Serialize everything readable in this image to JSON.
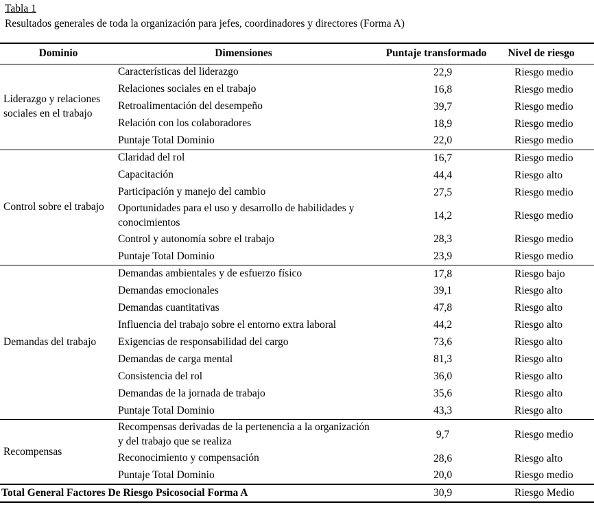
{
  "title": "Tabla 1",
  "subtitle": "Resultados generales de toda la organización para jefes, coordinadores y directores (Forma A)",
  "table": {
    "headers": [
      "Dominio",
      "Dimensiones",
      "Puntaje transformado",
      "Nivel de riesgo"
    ],
    "sections": [
      {
        "domain": "Liderazgo y relaciones\nsociales en el trabajo",
        "rows": [
          {
            "dimension": "Características del liderazgo",
            "score": "22,9",
            "risk": "Riesgo medio"
          },
          {
            "dimension": "Relaciones sociales en el trabajo",
            "score": "16,8",
            "risk": "Riesgo medio"
          },
          {
            "dimension": "Retroalimentación del desempeño",
            "score": "39,7",
            "risk": "Riesgo medio"
          },
          {
            "dimension": "Relación con los colaboradores",
            "score": "18,9",
            "risk": "Riesgo medio"
          },
          {
            "dimension": "Puntaje Total Dominio",
            "score": "22,0",
            "risk": "Riesgo medio"
          }
        ]
      },
      {
        "domain": "Control sobre el trabajo",
        "rows": [
          {
            "dimension": "Claridad del rol",
            "score": "16,7",
            "risk": "Riesgo medio"
          },
          {
            "dimension": "Capacitación",
            "score": "44,4",
            "risk": "Riesgo alto"
          },
          {
            "dimension": "Participación y manejo del cambio",
            "score": "27,5",
            "risk": "Riesgo medio"
          },
          {
            "dimension": "Oportunidades para el uso y desarrollo de habilidades y\nconocimientos",
            "score": "14,2",
            "risk": "Riesgo medio"
          },
          {
            "dimension": "Control y autonomía sobre el trabajo",
            "score": "28,3",
            "risk": "Riesgo medio"
          },
          {
            "dimension": "Puntaje Total Dominio",
            "score": "23,9",
            "risk": "Riesgo medio"
          }
        ]
      },
      {
        "domain": "Demandas del trabajo",
        "rows": [
          {
            "dimension": "Demandas ambientales y de esfuerzo físico",
            "score": "17,8",
            "risk": "Riesgo bajo"
          },
          {
            "dimension": "Demandas emocionales",
            "score": "39,1",
            "risk": "Riesgo alto"
          },
          {
            "dimension": "Demandas cuantitativas",
            "score": "47,8",
            "risk": "Riesgo alto"
          },
          {
            "dimension": "Influencia del trabajo sobre el entorno extra laboral",
            "score": "44,2",
            "risk": "Riesgo alto"
          },
          {
            "dimension": "Exigencias de responsabilidad del cargo",
            "score": "73,6",
            "risk": "Riesgo alto"
          },
          {
            "dimension": "Demandas de carga mental",
            "score": "81,3",
            "risk": "Riesgo alto"
          },
          {
            "dimension": "Consistencia del rol",
            "score": "36,0",
            "risk": "Riesgo alto"
          },
          {
            "dimension": "Demandas de la jornada de trabajo",
            "score": "35,6",
            "risk": "Riesgo alto"
          },
          {
            "dimension": "Puntaje Total Dominio",
            "score": "43,3",
            "risk": "Riesgo alto"
          }
        ]
      },
      {
        "domain": "Recompensas",
        "rows": [
          {
            "dimension": "Recompensas derivadas de la pertenencia a la organización\ny del trabajo que se realiza",
            "score": "9,7",
            "risk": "Riesgo medio"
          },
          {
            "dimension": "Reconocimiento y compensación",
            "score": "28,6",
            "risk": "Riesgo alto"
          },
          {
            "dimension": "Puntaje Total Dominio",
            "score": "20,0",
            "risk": "Riesgo medio"
          }
        ]
      }
    ],
    "total_row": {
      "label": "Total General Factores De Riesgo Psicosocial Forma A",
      "score": "30,9",
      "risk": "Riesgo Medio"
    }
  }
}
